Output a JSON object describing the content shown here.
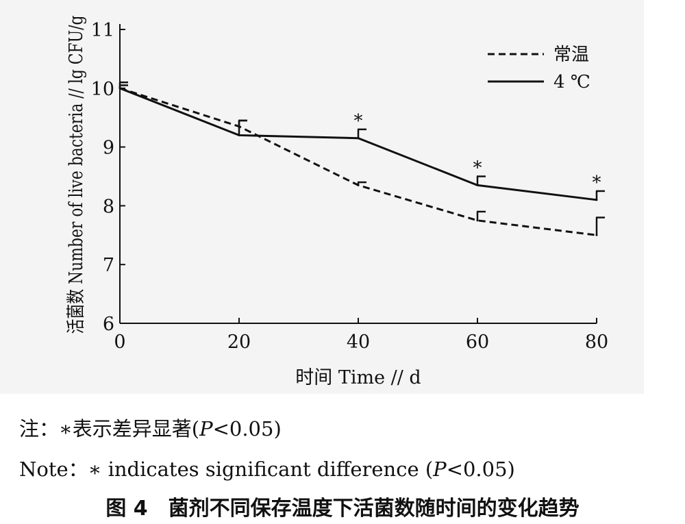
{
  "chart_data": {
    "type": "line",
    "title": "",
    "xlabel": "时间 Time // d",
    "ylabel": "活菌数 Number of live bacteria // lg CFU/g",
    "xlim": [
      0,
      80
    ],
    "ylim": [
      6,
      11
    ],
    "xticks": [
      "0",
      "20",
      "40",
      "60",
      "80"
    ],
    "yticks": [
      "6",
      "7",
      "8",
      "9",
      "10",
      "11"
    ],
    "grid": false,
    "legend_position": "top-right",
    "series": [
      {
        "name": "常温",
        "style": "dashed",
        "color": "#111111",
        "x": [
          0,
          20,
          40,
          60,
          80
        ],
        "y": [
          10.0,
          9.35,
          8.35,
          7.75,
          7.5
        ],
        "error": [
          0.05,
          0.1,
          0.05,
          0.15,
          0.3
        ]
      },
      {
        "name": "4 ℃",
        "style": "solid",
        "color": "#111111",
        "x": [
          0,
          20,
          40,
          60,
          80
        ],
        "y": [
          10.0,
          9.2,
          9.15,
          8.35,
          8.1
        ],
        "error": [
          0.1,
          0.25,
          0.15,
          0.15,
          0.15
        ]
      }
    ],
    "significance_marker": "*",
    "significant_x": [
      40,
      60,
      80
    ]
  },
  "notes": {
    "cn_prefix": "注：",
    "cn_body": "表示差异显著(",
    "en_prefix": "Note：",
    "en_body": "indicates significant difference (",
    "star": "∗",
    "p_symbol": "P",
    "p_value": "<0.05)"
  },
  "caption": "图 4　菌剂不同保存温度下活菌数随时间的变化趋势"
}
